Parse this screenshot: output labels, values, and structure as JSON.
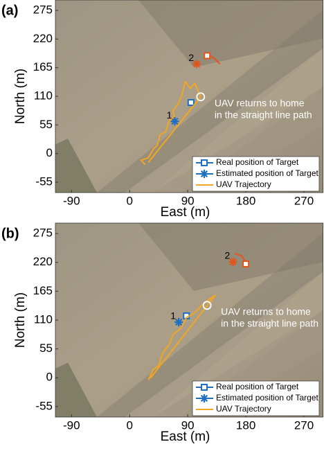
{
  "chart_data": [
    {
      "type": "scatter",
      "panel_label": "(a)",
      "xlabel": "East (m)",
      "ylabel": "North (m)",
      "xlim": [
        -115,
        300
      ],
      "ylim": [
        -75,
        295
      ],
      "xticks": [
        -90,
        0,
        90,
        180,
        270
      ],
      "yticks": [
        -55,
        0,
        55,
        110,
        165,
        220,
        275
      ],
      "legend": "lower right",
      "annotation": [
        "UAV returns to home",
        "in the straight line path"
      ],
      "return_point": {
        "x": 110,
        "y": 109
      },
      "target_track": {
        "color": "#e2561e",
        "x": [
          120,
          131,
          140
        ],
        "y": [
          191,
          183,
          172
        ]
      },
      "series": [
        {
          "name": "Real position of Target",
          "color": "#1f6fc0",
          "marker": "square",
          "point_colors": [
            "#1f6fc0",
            "#e2561e"
          ],
          "x": [
            95,
            120
          ],
          "y": [
            98,
            188
          ]
        },
        {
          "name": "Estimated position of Target",
          "color": "#1f6fc0",
          "marker": "star",
          "point_colors": [
            "#1f6fc0",
            "#e2561e"
          ],
          "labels": [
            "1",
            "2"
          ],
          "x": [
            70,
            104
          ],
          "y": [
            62,
            172
          ]
        },
        {
          "name": "UAV Trajectory",
          "color": "#f2a623",
          "marker": "line",
          "x": [
            24,
            18,
            29,
            37,
            43,
            47,
            56,
            61,
            69,
            67,
            75,
            80,
            86,
            94,
            101,
            110,
            29
          ],
          "y": [
            -21,
            -13,
            -8,
            9,
            16,
            36,
            42,
            62,
            72,
            82,
            95,
            109,
            138,
            125,
            135,
            109,
            -17
          ]
        }
      ]
    },
    {
      "type": "scatter",
      "panel_label": "(b)",
      "xlabel": "East (m)",
      "ylabel": "North (m)",
      "xlim": [
        -115,
        300
      ],
      "ylim": [
        -75,
        295
      ],
      "xticks": [
        -90,
        0,
        90,
        180,
        270
      ],
      "yticks": [
        -55,
        0,
        55,
        110,
        165,
        220,
        275
      ],
      "legend": "lower right",
      "annotation": [
        "UAV returns to home",
        "in the straight line path"
      ],
      "return_point": {
        "x": 120,
        "y": 138
      },
      "target_track": {
        "color": "#e2561e",
        "x": [
          163,
          174,
          180
        ],
        "y": [
          237,
          232,
          219
        ]
      },
      "series": [
        {
          "name": "Real position of Target",
          "color": "#1f6fc0",
          "marker": "square",
          "point_colors": [
            "#1f6fc0",
            "#e2561e"
          ],
          "x": [
            88,
            180
          ],
          "y": [
            118,
            217
          ]
        },
        {
          "name": "Estimated position of Target",
          "color": "#1f6fc0",
          "marker": "star",
          "point_colors": [
            "#1f6fc0",
            "#e2561e"
          ],
          "labels": [
            "1",
            "2"
          ],
          "x": [
            76,
            160
          ],
          "y": [
            106,
            221
          ]
        },
        {
          "name": "UAV Trajectory",
          "color": "#f2a623",
          "marker": "line",
          "x": [
            29,
            37,
            45,
            52,
            61,
            67,
            80,
            88,
            99,
            115,
            133,
            32
          ],
          "y": [
            -4,
            16,
            23,
            49,
            62,
            82,
            95,
            115,
            122,
            142,
            158,
            -1
          ]
        }
      ]
    }
  ]
}
